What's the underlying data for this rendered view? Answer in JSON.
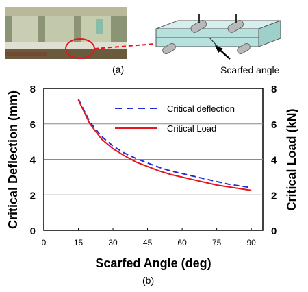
{
  "panel_a": {
    "caption": "(a)",
    "annotation": "Scarfed angle"
  },
  "panel_b": {
    "caption": "(b)"
  },
  "chart_data": {
    "type": "line",
    "xlabel": "Scarfed Angle (deg)",
    "ylabel_left": "Critical Deflection (mm)",
    "ylabel_right": "Critical Load (kN)",
    "xlim": [
      0,
      95
    ],
    "ylim_left": [
      0,
      8
    ],
    "ylim_right": [
      0,
      8
    ],
    "x_ticks": [
      0,
      15,
      30,
      45,
      60,
      75,
      90
    ],
    "y_ticks_left": [
      0,
      2,
      4,
      6,
      8
    ],
    "y_ticks_right": [
      0,
      2,
      4,
      6,
      8
    ],
    "grid": "horizontal",
    "legend_position": "top-right",
    "series": [
      {
        "name": "Critical deflection",
        "axis": "left",
        "style": "dashed",
        "color": "#1f2fd6",
        "x": [
          15,
          20,
          25,
          30,
          35,
          40,
          45,
          50,
          55,
          60,
          65,
          70,
          75,
          80,
          85,
          90
        ],
        "y": [
          7.4,
          6.1,
          5.3,
          4.75,
          4.35,
          4.05,
          3.8,
          3.55,
          3.35,
          3.2,
          3.05,
          2.9,
          2.75,
          2.6,
          2.5,
          2.4
        ]
      },
      {
        "name": "Critical Load",
        "axis": "right",
        "style": "solid",
        "color": "#e8141e",
        "x": [
          15,
          20,
          25,
          30,
          35,
          40,
          45,
          50,
          55,
          60,
          65,
          70,
          75,
          80,
          85,
          90
        ],
        "y": [
          7.35,
          6.0,
          5.15,
          4.6,
          4.2,
          3.85,
          3.6,
          3.35,
          3.15,
          3.0,
          2.85,
          2.7,
          2.55,
          2.45,
          2.35,
          2.25
        ]
      }
    ]
  }
}
